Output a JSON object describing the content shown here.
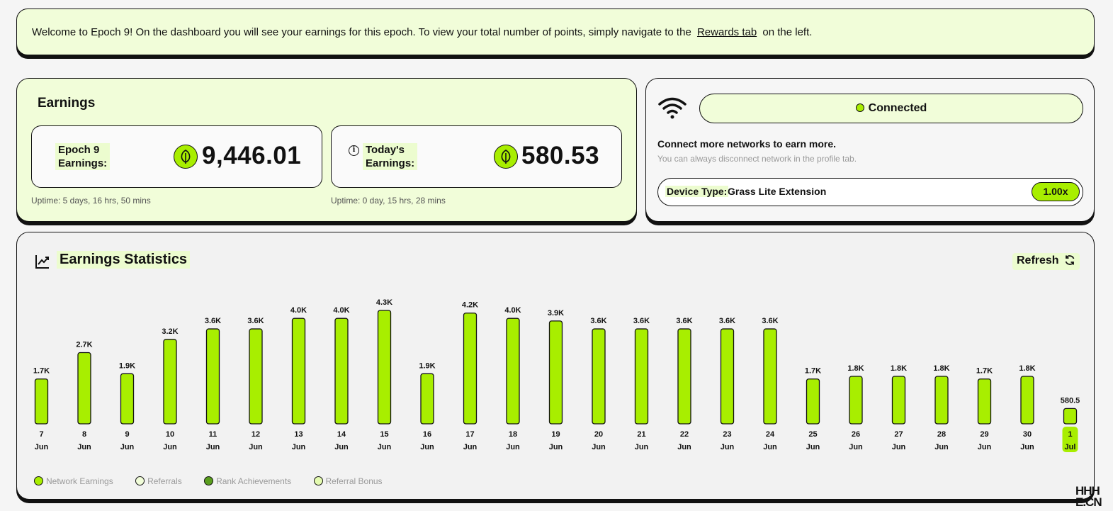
{
  "banner": {
    "text_before": "Welcome to Epoch 9! On the dashboard you will see your earnings for this epoch. To view your total number of points, simply navigate to the",
    "link": "Rewards tab",
    "text_after": "on the left."
  },
  "earnings": {
    "title": "Earnings",
    "epoch": {
      "label_line1": "Epoch 9",
      "label_line2": "Earnings:",
      "value": "9,446.01",
      "uptime": "Uptime: 5 days, 16 hrs, 50 mins"
    },
    "today": {
      "label_line1": "Today's",
      "label_line2": "Earnings:",
      "value": "580.53",
      "uptime": "Uptime: 0 day, 15 hrs, 28 mins"
    }
  },
  "network": {
    "status": "Connected",
    "heading": "Connect more networks to earn more.",
    "subtext": "You can always disconnect network in the profile tab.",
    "device_label": "Device Type:",
    "device_value": "Grass Lite Extension",
    "multiplier": "1.00x"
  },
  "stats": {
    "title": "Earnings Statistics",
    "refresh_label": "Refresh",
    "legend": [
      "Network Earnings",
      "Referrals",
      "Rank Achievements",
      "Referral Bonus"
    ],
    "legend_colors": [
      "#a8ee00",
      "#f1fdd9",
      "#5a9e1e",
      "#e4fbb0"
    ]
  },
  "colors": {
    "accent": "#a8ee00",
    "panel": "#f1fdd9",
    "border": "#111111"
  },
  "watermark": [
    "HHH",
    "E.CN"
  ],
  "chart_data": {
    "type": "bar",
    "categories": [
      "7 Jun",
      "8 Jun",
      "9 Jun",
      "10 Jun",
      "11 Jun",
      "12 Jun",
      "13 Jun",
      "14 Jun",
      "15 Jun",
      "16 Jun",
      "17 Jun",
      "18 Jun",
      "19 Jun",
      "20 Jun",
      "21 Jun",
      "22 Jun",
      "23 Jun",
      "24 Jun",
      "25 Jun",
      "26 Jun",
      "27 Jun",
      "28 Jun",
      "29 Jun",
      "30 Jun",
      "1 Jul"
    ],
    "day_labels": [
      "7",
      "8",
      "9",
      "10",
      "11",
      "12",
      "13",
      "14",
      "15",
      "16",
      "17",
      "18",
      "19",
      "20",
      "21",
      "22",
      "23",
      "24",
      "25",
      "26",
      "27",
      "28",
      "29",
      "30",
      "1"
    ],
    "month_labels": [
      "Jun",
      "Jun",
      "Jun",
      "Jun",
      "Jun",
      "Jun",
      "Jun",
      "Jun",
      "Jun",
      "Jun",
      "Jun",
      "Jun",
      "Jun",
      "Jun",
      "Jun",
      "Jun",
      "Jun",
      "Jun",
      "Jun",
      "Jun",
      "Jun",
      "Jun",
      "Jun",
      "Jun",
      "Jul"
    ],
    "values": [
      1700,
      2700,
      1900,
      3200,
      3600,
      3600,
      4000,
      4000,
      4300,
      1900,
      4200,
      4000,
      3900,
      3600,
      3600,
      3600,
      3600,
      3600,
      1700,
      1800,
      1800,
      1800,
      1700,
      1800,
      580.5
    ],
    "data_labels": [
      "1.7K",
      "2.7K",
      "1.9K",
      "3.2K",
      "3.6K",
      "3.6K",
      "4.0K",
      "4.0K",
      "4.3K",
      "1.9K",
      "4.2K",
      "4.0K",
      "3.9K",
      "3.6K",
      "3.6K",
      "3.6K",
      "3.6K",
      "3.6K",
      "1.7K",
      "1.8K",
      "1.8K",
      "1.8K",
      "1.7K",
      "1.8K",
      "580.5"
    ],
    "highlight_index": 24,
    "series": [
      {
        "name": "Network Earnings",
        "values": [
          1700,
          2700,
          1900,
          3200,
          3600,
          3600,
          4000,
          4000,
          4300,
          1900,
          4200,
          4000,
          3900,
          3600,
          3600,
          3600,
          3600,
          3600,
          1700,
          1800,
          1800,
          1800,
          1700,
          1800,
          580.5
        ]
      }
    ],
    "ylim": [
      0,
      4300
    ],
    "grid": false,
    "legend_position": "bottom-left"
  }
}
